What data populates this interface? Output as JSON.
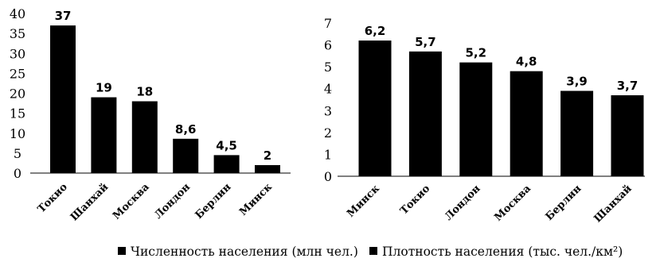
{
  "chart_data": [
    {
      "type": "bar",
      "categories": [
        "Токио",
        "Шанхай",
        "Москва",
        "Лондон",
        "Берлин",
        "Минск"
      ],
      "values": [
        37,
        19,
        18,
        8.6,
        4.5,
        2
      ],
      "data_labels": [
        "37",
        "19",
        "18",
        "8,6",
        "4,5",
        "2"
      ],
      "ylim": [
        0,
        40
      ],
      "yticks": [
        "0",
        "5",
        "10",
        "15",
        "20",
        "25",
        "30",
        "35",
        "40"
      ],
      "grid": false,
      "legend": "Численность населения (млн чел.)",
      "legend_position": "bottom",
      "bar_color": "#000000"
    },
    {
      "type": "bar",
      "categories": [
        "Минск",
        "Токио",
        "Лондон",
        "Москва",
        "Берлин",
        "Шанхай"
      ],
      "values": [
        6.2,
        5.7,
        5.2,
        4.8,
        3.9,
        3.7
      ],
      "data_labels": [
        "6,2",
        "5,7",
        "5,2",
        "4,8",
        "3,9",
        "3,7"
      ],
      "ylim": [
        0,
        7
      ],
      "yticks": [
        "0",
        "1",
        "2",
        "3",
        "4",
        "5",
        "6",
        "7"
      ],
      "grid": false,
      "legend": "Плотность населения (тыс. чел./км²)",
      "legend_position": "bottom",
      "bar_color": "#000000"
    }
  ]
}
